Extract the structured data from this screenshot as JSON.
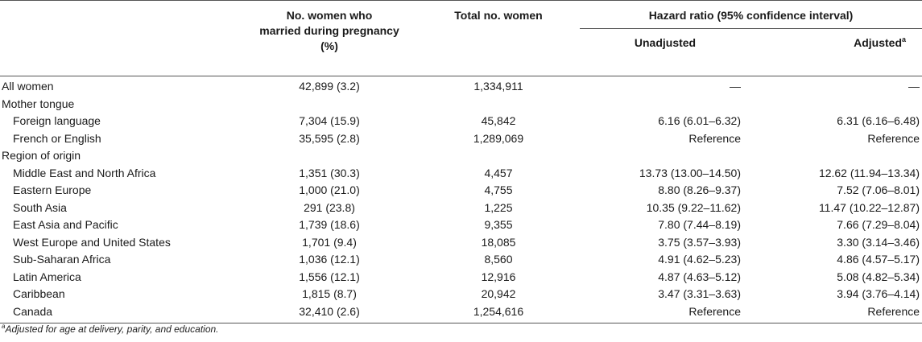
{
  "header": {
    "col1": "No. women who married during pregnancy (%)",
    "col1_line1": "No. women who",
    "col1_line2": "married during pregnancy",
    "col1_line3": "(%)",
    "col2": "Total no. women",
    "hr_group": "Hazard ratio (95% confidence interval)",
    "unadjusted": "Unadjusted",
    "adjusted": "Adjusted",
    "adjusted_mark": "a"
  },
  "rows": [
    {
      "label": "All women",
      "married": "42,899 (3.2)",
      "total": "1,334,911",
      "unadj": "—",
      "adj": "—",
      "indent": false
    },
    {
      "label": "Mother tongue",
      "married": "",
      "total": "",
      "unadj": "",
      "adj": "",
      "indent": false
    },
    {
      "label": "Foreign language",
      "married": "7,304 (15.9)",
      "total": "45,842",
      "unadj": "6.16 (6.01–6.32)",
      "adj": "6.31 (6.16–6.48)",
      "indent": true
    },
    {
      "label": "French or English",
      "married": "35,595 (2.8)",
      "total": "1,289,069",
      "unadj": "Reference",
      "adj": "Reference",
      "indent": true
    },
    {
      "label": "Region of origin",
      "married": "",
      "total": "",
      "unadj": "",
      "adj": "",
      "indent": false
    },
    {
      "label": "Middle East and North Africa",
      "married": "1,351 (30.3)",
      "total": "4,457",
      "unadj": "13.73 (13.00–14.50)",
      "adj": "12.62 (11.94–13.34)",
      "indent": true
    },
    {
      "label": "Eastern Europe",
      "married": "1,000 (21.0)",
      "total": "4,755",
      "unadj": "8.80 (8.26–9.37)",
      "adj": "7.52 (7.06–8.01)",
      "indent": true
    },
    {
      "label": "South Asia",
      "married": "291 (23.8)",
      "total": "1,225",
      "unadj": "10.35 (9.22–11.62)",
      "adj": "11.47 (10.22–12.87)",
      "indent": true
    },
    {
      "label": "East Asia and Pacific",
      "married": "1,739 (18.6)",
      "total": "9,355",
      "unadj": "7.80 (7.44–8.19)",
      "adj": "7.66 (7.29–8.04)",
      "indent": true
    },
    {
      "label": "West Europe and United States",
      "married": "1,701 (9.4)",
      "total": "18,085",
      "unadj": "3.75 (3.57–3.93)",
      "adj": "3.30 (3.14–3.46)",
      "indent": true
    },
    {
      "label": "Sub-Saharan Africa",
      "married": "1,036 (12.1)",
      "total": "8,560",
      "unadj": "4.91 (4.62–5.23)",
      "adj": "4.86 (4.57–5.17)",
      "indent": true
    },
    {
      "label": "Latin America",
      "married": "1,556 (12.1)",
      "total": "12,916",
      "unadj": "4.87 (4.63–5.12)",
      "adj": "5.08 (4.82–5.34)",
      "indent": true
    },
    {
      "label": "Caribbean",
      "married": "1,815 (8.7)",
      "total": "20,942",
      "unadj": "3.47 (3.31–3.63)",
      "adj": "3.94 (3.76–4.14)",
      "indent": true
    },
    {
      "label": "Canada",
      "married": "32,410 (2.6)",
      "total": "1,254,616",
      "unadj": "Reference",
      "adj": "Reference",
      "indent": true
    }
  ],
  "footnote": {
    "mark": "a",
    "text": "Adjusted for age at delivery, parity, and education."
  }
}
